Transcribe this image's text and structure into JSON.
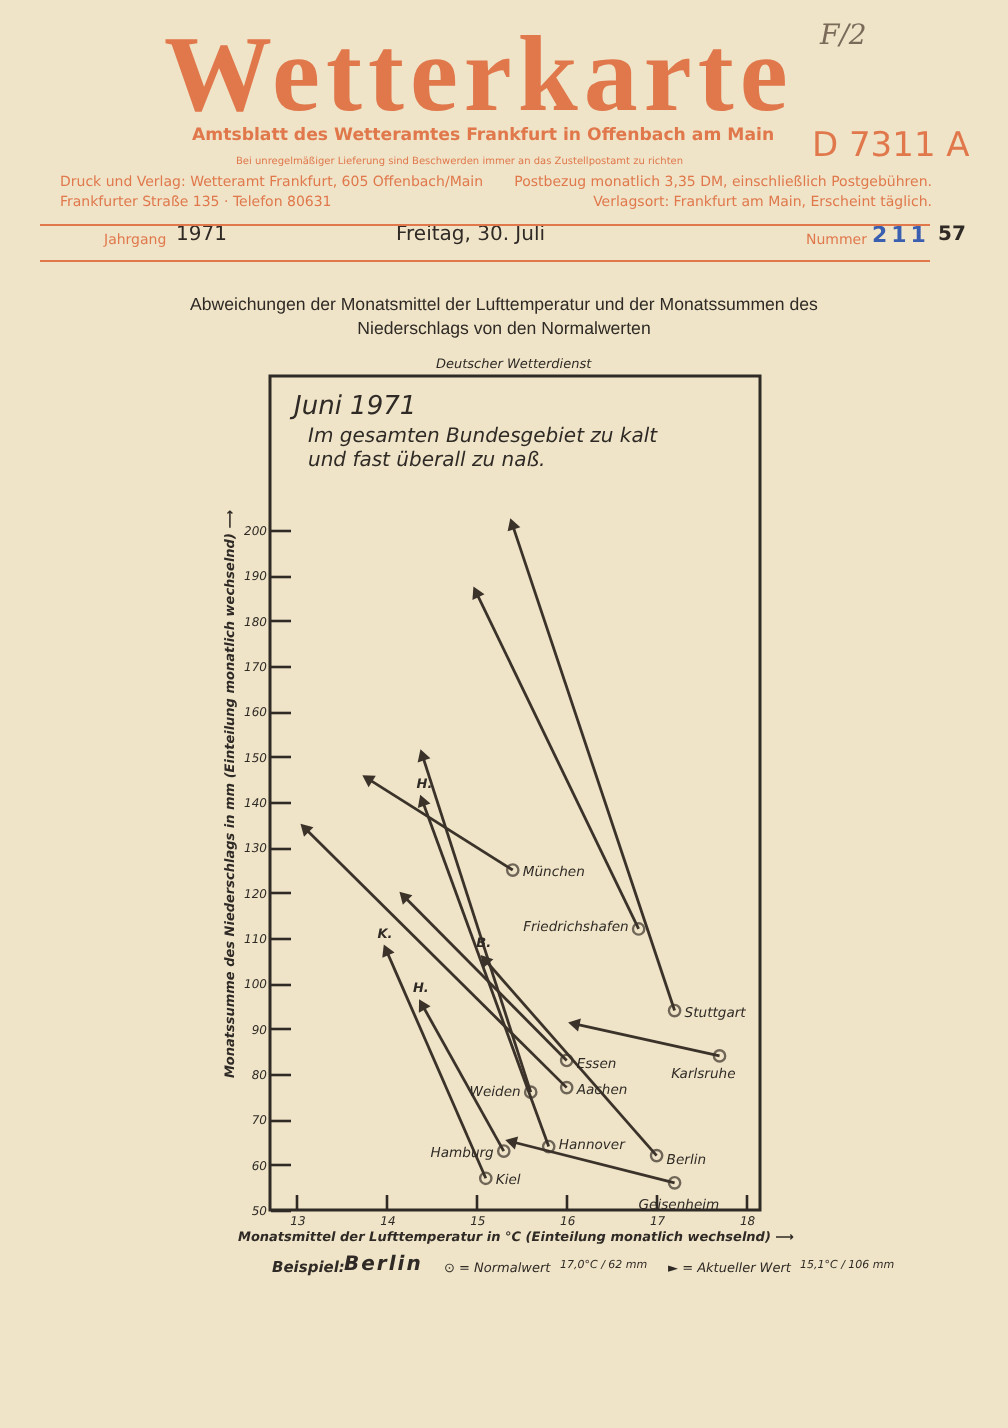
{
  "chart_data": {
    "type": "line",
    "title": "Abweichungen der Monatsmittel der Lufttemperatur und der Monatssummen des Niederschlags von den Normalwerten",
    "xlabel": "Monatsmittel der Lufttemperatur in °C (Einteilung monatlich wechselnd) ⟶",
    "ylabel": "Monatssumme des Niederschlags in mm (Einteilung monatlich wechselnd) ⟶",
    "xlim": [
      12.7,
      18.15
    ],
    "ylim": [
      50,
      234
    ],
    "xticks": [
      13,
      14,
      15,
      16,
      17,
      18
    ],
    "yticks": [
      50,
      60,
      70,
      80,
      90,
      100,
      110,
      120,
      130,
      140,
      150,
      160,
      170,
      180,
      190,
      200
    ],
    "grid": false,
    "marker": "circle",
    "series": [
      {
        "name": "Stuttgart",
        "color": "#3b322a",
        "x": [
          17.2,
          15.4
        ],
        "values": [
          94,
          201
        ]
      },
      {
        "name": "Friedrichshafen",
        "color": "#3b322a",
        "x": [
          16.8,
          15.0
        ],
        "values": [
          112,
          186
        ]
      },
      {
        "name": "München",
        "color": "#3b322a",
        "x": [
          15.4,
          13.8
        ],
        "values": [
          125,
          145
        ]
      },
      {
        "name": "Karlsruhe",
        "color": "#3b322a",
        "x": [
          17.7,
          16.1
        ],
        "values": [
          84,
          91
        ]
      },
      {
        "name": "Essen",
        "color": "#3b322a",
        "x": [
          16.0,
          14.2
        ],
        "values": [
          83,
          119
        ]
      },
      {
        "name": "Aachen",
        "color": "#3b322a",
        "x": [
          16.0,
          13.1
        ],
        "values": [
          77,
          134
        ]
      },
      {
        "name": "Weiden",
        "color": "#3b322a",
        "x": [
          15.6,
          14.4
        ],
        "values": [
          76,
          150
        ]
      },
      {
        "name": "Hamburg",
        "color": "#3b322a",
        "x": [
          15.3,
          14.4
        ],
        "values": [
          63,
          95
        ]
      },
      {
        "name": "Hannover",
        "color": "#3b322a",
        "x": [
          15.8,
          14.4
        ],
        "values": [
          64,
          140
        ]
      },
      {
        "name": "Berlin",
        "color": "#3b322a",
        "x": [
          17.0,
          15.1
        ],
        "values": [
          62,
          105
        ]
      },
      {
        "name": "Kiel",
        "color": "#3b322a",
        "x": [
          15.1,
          14.0
        ],
        "values": [
          57,
          107
        ]
      },
      {
        "name": "Geisenheim",
        "color": "#3b322a",
        "x": [
          17.2,
          15.4
        ],
        "values": [
          56,
          65
        ]
      }
    ],
    "annotations": [
      "Wetterkarte",
      "Amtsblatt des Wetteramtes Frankfurt in Offenbach am Main",
      "D 7311 A",
      "Bei unregelmäßiger Lieferung sind Beschwerden immer an das Zustellpostamt zu richten",
      "Druck und Verlag: Wetteramt Frankfurt, 605 Offenbach/Main",
      "Frankfurter Straße 135 · Telefon 80631",
      "Postbezug monatlich 3,35 DM, einschließlich Postgebühren.",
      "Verlagsort: Frankfurt am Main, Erscheint täglich.",
      "Jahrgang",
      "1971",
      "Freitag, 30. Juli",
      "Nummer",
      "211",
      "57",
      "F/2",
      "Deutscher Wetterdienst",
      "Juni 1971",
      "Im gesamten Bundesgebiet zu kalt",
      "und fast überall zu naß.",
      "Beispiel:",
      "Berlin",
      "⊙ = Normalwert",
      "17,0°C / 62 mm",
      "► = Aktueller Wert",
      "15,1°C / 106 mm",
      {
        "text": "H.",
        "x": 14.44,
        "y": 140
      },
      {
        "text": "H.",
        "x": 14.4,
        "y": 95
      },
      {
        "text": "K.",
        "x": 14.0,
        "y": 107
      },
      {
        "text": "B.",
        "x": 15.1,
        "y": 105
      }
    ]
  }
}
